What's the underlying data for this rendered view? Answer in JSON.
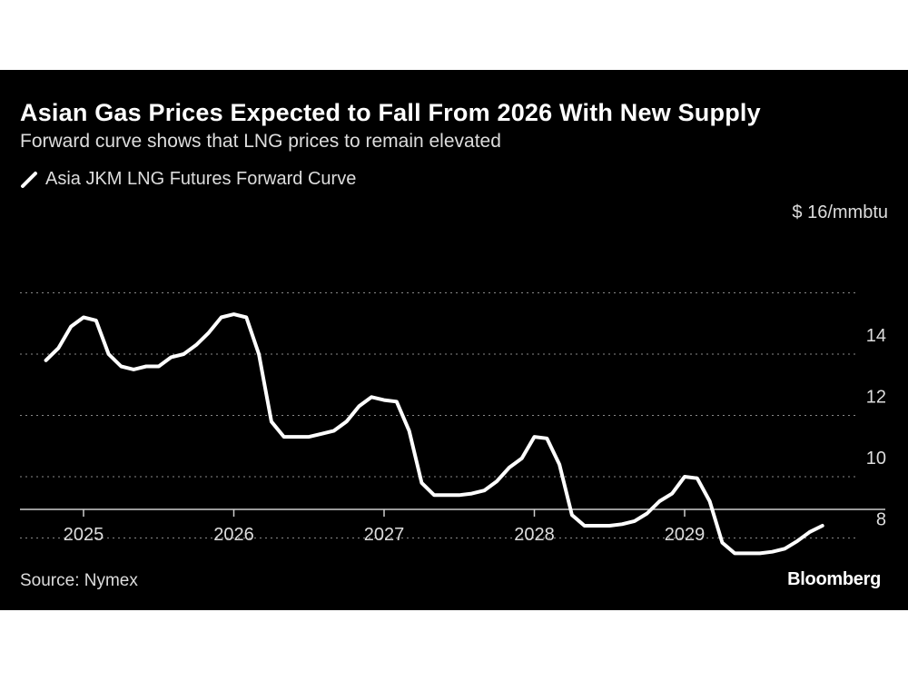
{
  "header": {
    "title": "Asian Gas Prices Expected to Fall From 2026 With New Supply",
    "subtitle": "Forward curve shows that LNG prices to remain elevated"
  },
  "legend": {
    "label": "Asia JKM LNG Futures Forward Curve"
  },
  "footer": {
    "source": "Source: Nymex",
    "brand": "Bloomberg"
  },
  "colors": {
    "background": "#000000",
    "line": "#ffffff",
    "grid": "#888888",
    "text": "#dddddd"
  },
  "chart_data": {
    "type": "line",
    "title": "Asian Gas Prices Expected to Fall From 2026 With New Supply",
    "subtitle": "Forward curve shows that LNG prices to remain elevated",
    "ylabel": "$ 16/mmbtu",
    "ylim": [
      7,
      16
    ],
    "yticks": [
      {
        "value": 16,
        "label": "$ 16/mmbtu"
      },
      {
        "value": 14,
        "label": "14"
      },
      {
        "value": 12,
        "label": "12"
      },
      {
        "value": 10,
        "label": "10"
      },
      {
        "value": 8,
        "label": "8"
      }
    ],
    "xticks": [
      "2025",
      "2026",
      "2027",
      "2028",
      "2029"
    ],
    "grid": true,
    "grid_style": "dotted-horizontal",
    "legend_position": "top-left",
    "series": [
      {
        "name": "Asia JKM LNG Futures Forward Curve",
        "x": [
          "2024-10",
          "2024-11",
          "2024-12",
          "2025-01",
          "2025-02",
          "2025-03",
          "2025-04",
          "2025-05",
          "2025-06",
          "2025-07",
          "2025-08",
          "2025-09",
          "2025-10",
          "2025-11",
          "2025-12",
          "2026-01",
          "2026-02",
          "2026-03",
          "2026-04",
          "2026-05",
          "2026-06",
          "2026-07",
          "2026-08",
          "2026-09",
          "2026-10",
          "2026-11",
          "2026-12",
          "2027-01",
          "2027-02",
          "2027-03",
          "2027-04",
          "2027-05",
          "2027-06",
          "2027-07",
          "2027-08",
          "2027-09",
          "2027-10",
          "2027-11",
          "2027-12",
          "2028-01",
          "2028-02",
          "2028-03",
          "2028-04",
          "2028-05",
          "2028-06",
          "2028-07",
          "2028-08",
          "2028-09",
          "2028-10",
          "2028-11",
          "2028-12",
          "2029-01",
          "2029-02",
          "2029-03",
          "2029-04",
          "2029-05",
          "2029-06",
          "2029-07",
          "2029-08",
          "2029-09",
          "2029-10",
          "2029-11",
          "2029-12"
        ],
        "values": [
          13.8,
          14.2,
          14.9,
          15.2,
          15.1,
          14.0,
          13.6,
          13.5,
          13.6,
          13.6,
          13.9,
          14.0,
          14.3,
          14.7,
          15.2,
          15.3,
          15.2,
          14.0,
          11.8,
          11.3,
          11.3,
          11.3,
          11.4,
          11.5,
          11.8,
          12.3,
          12.6,
          12.5,
          12.45,
          11.5,
          9.8,
          9.4,
          9.4,
          9.4,
          9.45,
          9.55,
          9.85,
          10.3,
          10.6,
          11.3,
          11.25,
          10.4,
          8.75,
          8.4,
          8.4,
          8.4,
          8.45,
          8.55,
          8.8,
          9.2,
          9.45,
          10.0,
          9.95,
          9.2,
          7.85,
          7.5,
          7.5,
          7.5,
          7.55,
          7.65,
          7.9,
          8.2,
          8.4
        ]
      }
    ]
  }
}
